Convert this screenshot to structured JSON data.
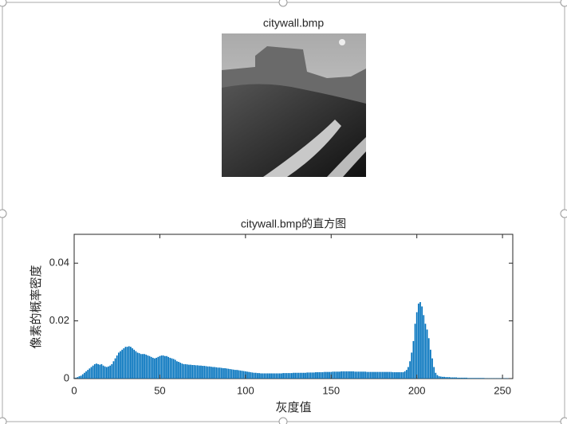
{
  "image_title": "citywall.bmp",
  "chart_data": {
    "type": "bar",
    "title": "citywall.bmp的直方图",
    "xlabel": "灰度值",
    "ylabel": "像素的概率密度",
    "color": "#0072bd",
    "xlim": [
      0,
      256
    ],
    "xticks": [
      0,
      50,
      100,
      150,
      200,
      250
    ],
    "ylim": [
      0,
      0.05
    ],
    "yticks": [
      0,
      0.02,
      0.04
    ],
    "x": [
      0,
      1,
      2,
      3,
      4,
      5,
      6,
      7,
      8,
      9,
      10,
      11,
      12,
      13,
      14,
      15,
      16,
      17,
      18,
      19,
      20,
      21,
      22,
      23,
      24,
      25,
      26,
      27,
      28,
      29,
      30,
      31,
      32,
      33,
      34,
      35,
      36,
      37,
      38,
      39,
      40,
      41,
      42,
      43,
      44,
      45,
      46,
      47,
      48,
      49,
      50,
      51,
      52,
      53,
      54,
      55,
      56,
      57,
      58,
      59,
      60,
      61,
      62,
      63,
      64,
      65,
      66,
      67,
      68,
      69,
      70,
      71,
      72,
      73,
      74,
      75,
      76,
      77,
      78,
      79,
      80,
      81,
      82,
      83,
      84,
      85,
      86,
      87,
      88,
      89,
      90,
      91,
      92,
      93,
      94,
      95,
      96,
      97,
      98,
      99,
      100,
      101,
      102,
      103,
      104,
      105,
      106,
      107,
      108,
      109,
      110,
      111,
      112,
      113,
      114,
      115,
      116,
      117,
      118,
      119,
      120,
      121,
      122,
      123,
      124,
      125,
      126,
      127,
      128,
      129,
      130,
      131,
      132,
      133,
      134,
      135,
      136,
      137,
      138,
      139,
      140,
      141,
      142,
      143,
      144,
      145,
      146,
      147,
      148,
      149,
      150,
      151,
      152,
      153,
      154,
      155,
      156,
      157,
      158,
      159,
      160,
      161,
      162,
      163,
      164,
      165,
      166,
      167,
      168,
      169,
      170,
      171,
      172,
      173,
      174,
      175,
      176,
      177,
      178,
      179,
      180,
      181,
      182,
      183,
      184,
      185,
      186,
      187,
      188,
      189,
      190,
      191,
      192,
      193,
      194,
      195,
      196,
      197,
      198,
      199,
      200,
      201,
      202,
      203,
      204,
      205,
      206,
      207,
      208,
      209,
      210,
      211,
      212,
      213,
      214,
      215,
      216,
      217,
      218,
      219,
      220,
      221,
      222,
      223,
      224,
      225,
      226,
      227,
      228,
      229,
      230,
      231,
      232,
      233,
      234,
      235,
      236,
      237,
      238,
      239,
      240,
      241,
      242,
      243,
      244,
      245,
      246,
      247,
      248,
      249,
      250,
      251,
      252,
      253,
      254,
      255
    ],
    "values": [
      0.0002,
      0.0003,
      0.0005,
      0.0008,
      0.001,
      0.0015,
      0.002,
      0.0025,
      0.003,
      0.0035,
      0.004,
      0.0045,
      0.005,
      0.0052,
      0.005,
      0.0048,
      0.005,
      0.0045,
      0.0042,
      0.004,
      0.0042,
      0.0045,
      0.005,
      0.006,
      0.007,
      0.008,
      0.009,
      0.0095,
      0.01,
      0.0105,
      0.011,
      0.011,
      0.0112,
      0.011,
      0.0105,
      0.01,
      0.0095,
      0.009,
      0.0088,
      0.0085,
      0.0085,
      0.0085,
      0.0083,
      0.008,
      0.0078,
      0.0075,
      0.0072,
      0.007,
      0.0072,
      0.0075,
      0.0078,
      0.008,
      0.008,
      0.0078,
      0.0078,
      0.0075,
      0.0072,
      0.007,
      0.0068,
      0.0065,
      0.006,
      0.0058,
      0.0055,
      0.0052,
      0.005,
      0.005,
      0.0049,
      0.0048,
      0.0048,
      0.0047,
      0.0047,
      0.0046,
      0.0046,
      0.0045,
      0.0045,
      0.0044,
      0.0044,
      0.0043,
      0.0042,
      0.0042,
      0.0041,
      0.004,
      0.004,
      0.0039,
      0.0038,
      0.0038,
      0.0037,
      0.0036,
      0.0036,
      0.0035,
      0.0034,
      0.0033,
      0.0032,
      0.0031,
      0.003,
      0.003,
      0.0029,
      0.0028,
      0.0027,
      0.0026,
      0.0025,
      0.0024,
      0.0023,
      0.0022,
      0.0021,
      0.002,
      0.002,
      0.0019,
      0.0019,
      0.0018,
      0.0018,
      0.0018,
      0.0018,
      0.0018,
      0.0018,
      0.0018,
      0.0018,
      0.0018,
      0.0018,
      0.0018,
      0.0018,
      0.0018,
      0.0019,
      0.0019,
      0.0019,
      0.0019,
      0.0019,
      0.0019,
      0.002,
      0.002,
      0.002,
      0.002,
      0.002,
      0.002,
      0.002,
      0.002,
      0.0021,
      0.0021,
      0.0021,
      0.0021,
      0.0021,
      0.0022,
      0.0022,
      0.0022,
      0.0022,
      0.0022,
      0.0023,
      0.0023,
      0.0023,
      0.0023,
      0.0023,
      0.0024,
      0.0024,
      0.0024,
      0.0024,
      0.0024,
      0.0025,
      0.0025,
      0.0025,
      0.0025,
      0.0025,
      0.0025,
      0.0025,
      0.0025,
      0.0024,
      0.0024,
      0.0024,
      0.0024,
      0.0024,
      0.0024,
      0.0024,
      0.0023,
      0.0023,
      0.0023,
      0.0023,
      0.0023,
      0.0023,
      0.0023,
      0.0023,
      0.0023,
      0.0023,
      0.0023,
      0.0023,
      0.0023,
      0.0023,
      0.0023,
      0.0022,
      0.0022,
      0.0022,
      0.0022,
      0.0022,
      0.0022,
      0.0022,
      0.0025,
      0.003,
      0.004,
      0.006,
      0.009,
      0.013,
      0.019,
      0.023,
      0.026,
      0.0265,
      0.025,
      0.022,
      0.019,
      0.017,
      0.014,
      0.01,
      0.007,
      0.004,
      0.002,
      0.0012,
      0.0008,
      0.0007,
      0.0006,
      0.0006,
      0.0005,
      0.0005,
      0.0005,
      0.0004,
      0.0004,
      0.0004,
      0.0004,
      0.0003,
      0.0003,
      0.0003,
      0.0003,
      0.0003,
      0.0003,
      0.0002,
      0.0002,
      0.0002,
      0.0002,
      0.0002,
      0.0002,
      0.0002,
      0.0002,
      0.0002,
      0.0002,
      0.0001,
      0.0001,
      0.0001,
      0.0001,
      0.0001,
      0.0001,
      0.0001,
      0.0001,
      0.0001,
      0.0001,
      0.0001,
      0.0001,
      0.0001,
      0.0001,
      0.0001,
      0.0001
    ]
  }
}
